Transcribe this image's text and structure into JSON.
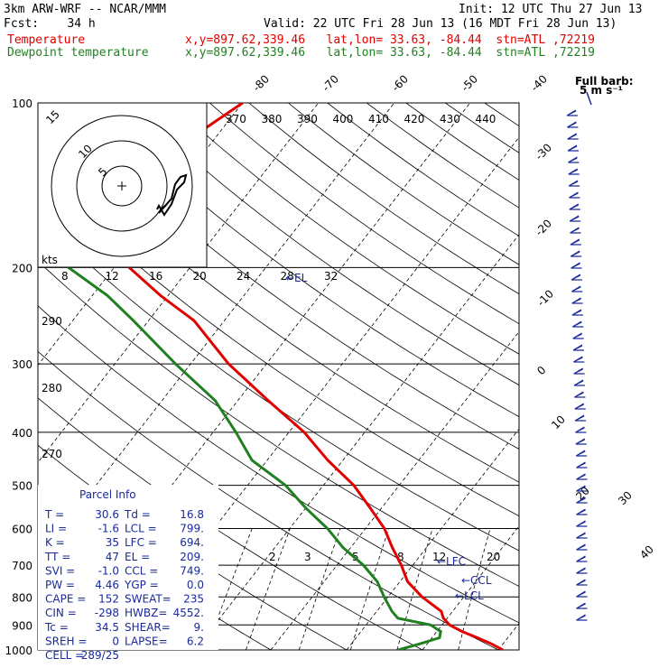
{
  "header": {
    "model": "3km ARW-WRF -- NCAR/MMM",
    "init": "Init: 12 UTC Thu 27 Jun 13",
    "fcst": "Fcst:    34 h",
    "valid": "Valid: 22 UTC Fri 28 Jun 13 (16 MDT Fri 28 Jun 13)",
    "legend": [
      {
        "name": "Temperature",
        "loc": "x,y=897.62,339.46   lat,lon= 33.63, -84.44  stn=ATL ,72219",
        "color": "#e00000"
      },
      {
        "name": "Dewpoint temperature",
        "loc": "x,y=897.62,339.46   lat,lon= 33.63, -84.44  stn=ATL ,72219",
        "color": "#208020"
      }
    ]
  },
  "full_barb": {
    "line1": "Full barb:",
    "line2": "5 m s⁻¹"
  },
  "hodograph": {
    "rings": [
      "5",
      "10",
      "15"
    ],
    "kts_label": "kts"
  },
  "parcel_info": {
    "title": "Parcel Info",
    "rows": [
      [
        "T  =",
        "30.6",
        "Td =",
        "16.8"
      ],
      [
        "LI =",
        "-1.6",
        "LCL =",
        "799."
      ],
      [
        "K  =",
        "35",
        "LFC =",
        "694."
      ],
      [
        "TT =",
        "47",
        "EL  =",
        "209."
      ],
      [
        "SVI =",
        "-1.0",
        "CCL =",
        "749."
      ],
      [
        "PW =",
        "4.46",
        "YGP =",
        "0.0"
      ],
      [
        "CAPE =",
        "152",
        "SWEAT=",
        "235"
      ],
      [
        "CIN =",
        "-298",
        "HWBZ=",
        "4552."
      ],
      [
        "Tc =",
        "34.5",
        "SHEAR=",
        "9."
      ],
      [
        "SREH =",
        "0",
        "LAPSE=",
        "6.2"
      ],
      [
        "CELL =",
        "289/25",
        "",
        ""
      ]
    ]
  },
  "chart_data": {
    "type": "line",
    "title": "",
    "pressure_levels": [
      100,
      200,
      300,
      400,
      500,
      600,
      700,
      800,
      900,
      1000
    ],
    "skew_temp_labels_top": [
      "-80",
      "-70",
      "-60",
      "-50",
      "-40"
    ],
    "skew_temp_labels_right": [
      "-30",
      "-20",
      "-10",
      "0",
      "10",
      "20",
      "30",
      "40"
    ],
    "theta_labels": [
      "370",
      "380",
      "390",
      "400",
      "410",
      "420",
      "430",
      "440"
    ],
    "mixing_ratio_labels": [
      "2",
      "3",
      "5",
      "8",
      "12",
      "20"
    ],
    "wind_scale_labels": [
      "8",
      "12",
      "16",
      "20",
      "24",
      "28",
      "32"
    ],
    "side_labels": [
      "290",
      "280",
      "270"
    ],
    "level_markers": {
      "EL": "EL",
      "LFC": "LFC",
      "CCL": "CCL",
      "LCL": "LCL"
    },
    "series": [
      {
        "name": "Temperature",
        "color": "#e00000",
        "p": [
          1000,
          975,
          950,
          925,
          900,
          875,
          850,
          800,
          750,
          700,
          650,
          600,
          550,
          500,
          450,
          400,
          350,
          300,
          250,
          225,
          200,
          175,
          150,
          130,
          115,
          100
        ],
        "t": [
          30.6,
          28.5,
          26.0,
          23.3,
          21.0,
          19.5,
          18.5,
          14.5,
          11.0,
          8.5,
          5.5,
          2.5,
          -1.5,
          -6.0,
          -12.0,
          -18.0,
          -26.0,
          -35.0,
          -44.0,
          -51.0,
          -58.0,
          -62.0,
          -64.0,
          -66.0,
          -63.0,
          -60.0
        ]
      },
      {
        "name": "Dewpoint temperature",
        "color": "#208020",
        "p": [
          1000,
          975,
          950,
          925,
          900,
          875,
          850,
          800,
          750,
          700,
          650,
          600,
          550,
          500,
          450,
          400,
          350,
          300,
          250,
          225,
          200,
          175,
          150,
          130,
          115,
          100
        ],
        "t": [
          16.8,
          19.0,
          21.0,
          20.5,
          18.5,
          13.5,
          12.0,
          9.5,
          7.0,
          3.5,
          -1.0,
          -5.0,
          -10.0,
          -15.0,
          -22.0,
          -27.0,
          -33.0,
          -42.0,
          -52.0,
          -58.0,
          -66.0,
          -76.0,
          -85.0,
          -85.0,
          -80.0,
          -78.0
        ]
      }
    ]
  }
}
